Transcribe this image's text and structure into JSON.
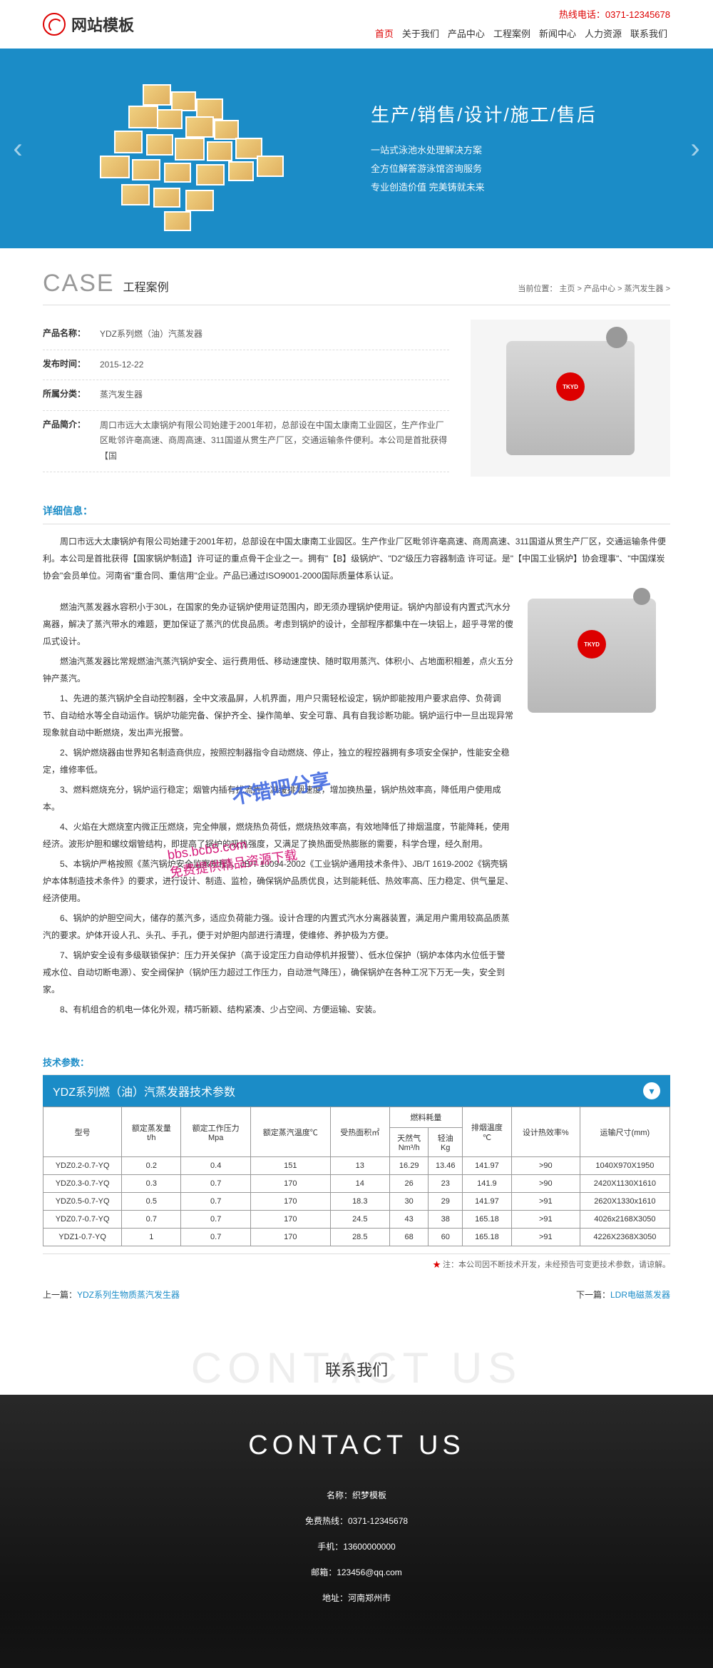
{
  "header": {
    "logo_text": "网站模板",
    "hotline": "热线电话：0371-12345678",
    "nav": [
      "首页",
      "关于我们",
      "产品中心",
      "工程案例",
      "新闻中心",
      "人力资源",
      "联系我们"
    ],
    "nav_active_index": 0
  },
  "banner": {
    "title": "生产/销售/设计/施工/售后",
    "lines": [
      "一站式泳池水处理解决方案",
      "全方位解答游泳馆咨询服务",
      "专业创造价值 完美铸就未来"
    ],
    "bg_color": "#1b8cc7"
  },
  "section": {
    "title_en": "CASE",
    "title_cn": "工程案例",
    "breadcrumb_label": "当前位置：",
    "breadcrumb": [
      "主页",
      "产品中心",
      "蒸汽发生器"
    ]
  },
  "product": {
    "name_label": "产品名称：",
    "name": "YDZ系列燃（油）汽蒸发器",
    "date_label": "发布时间：",
    "date": "2015-12-22",
    "category_label": "所属分类：",
    "category": "蒸汽发生器",
    "intro_label": "产品简介：",
    "intro": "周口市远大太康锅炉有限公司始建于2001年初，总部设在中国太康南工业园区，生产作业厂区毗邻许亳高速、商周高速、311国道从贯生产厂区，交通运输条件便利。本公司是首批获得【国",
    "boiler_logo": "TKYD"
  },
  "detail": {
    "title": "详细信息：",
    "intro_para": "周口市远大太康锅炉有限公司始建于2001年初，总部设在中国太康南工业园区。生产作业厂区毗邻许亳高速、商周高速、311国道从贯生产厂区，交通运输条件便利。本公司是首批获得【国家锅炉制造】许可证的重点骨干企业之一。拥有\"【B】级锅炉\"、\"D2\"级压力容器制造 许可证。是\"【中国工业锅炉】协会理事\"、\"中国煤炭协会\"会员单位。河南省\"重合同、重信用\"企业。产品已通过ISO9001-2000国际质量体系认证。",
    "paragraphs": [
      "燃油汽蒸发器水容积小于30L，在国家的免办证锅炉使用证范围内，即无须办理锅炉使用证。锅炉内部设有内置式汽水分离器，解决了蒸汽带水的难题，更加保证了蒸汽的优良品质。考虑到锅炉的设计，全部程序都集中在一块铝上，超乎寻常的傻瓜式设计。",
      "燃油汽蒸发器比常规燃油汽蒸汽锅炉安全、运行费用低、移动速度快、随时取用蒸汽、体积小、占地面积相差，点火五分钟产蒸汽。",
      "1、先进的蒸汽锅炉全自动控制器，全中文液晶屏，人机界面，用户只需轻松设定，锅炉即能按用户要求启停、负荷调节、自动给水等全自动运作。锅炉功能完备、保护齐全、操作简单、安全可靠、具有自我诊断功能。锅炉运行中一旦出现异常现象就自动中断燃烧，发出声光报警。",
      "2、锅炉燃烧器由世界知名制造商供应，按照控制器指令自动燃烧、停止，独立的程控器拥有多项安全保护，性能安全稳定，维修率低。",
      "3、燃料燃烧充分，锅炉运行稳定；烟管内插有扰流片，减缓排烟速度，增加换热量，锅炉热效率高，降低用户使用成本。",
      "4、火焰在大燃烧室内微正压燃烧，完全伸展，燃烧热负荷低，燃烧热效率高，有效地降低了排烟温度，节能降耗，使用经济。波形炉胆和螺纹烟管结构，即提高了锅炉的吸热强度，又满足了换热面受热膨胀的需要，科学合理，经久耐用。",
      "5、本锅炉严格按照《蒸汽锅炉安全监察规程》、JB/T 10094-2002《工业锅炉通用技术条件》、JB/T 1619-2002《锅壳锅炉本体制造技术条件》的要求，进行设计、制造、监检，确保锅炉品质优良，达到能耗低、热效率高、压力稳定、供气量足、经济使用。",
      "6、锅炉的炉胆空间大，储存的蒸汽多，适应负荷能力强。设计合理的内置式汽水分离器装置，满足用户需用较高品质蒸汽的要求。炉体开设人孔、头孔、手孔，便于对炉胆内部进行清理，使维修、养护极为方便。",
      "7、锅炉安全设有多级联锁保护：压力开关保护（高于设定压力自动停机并报警）、低水位保护（锅炉本体内水位低于警戒水位、自动切断电源）、安全阀保护（锅炉压力超过工作压力，自动泄气降压），确保锅炉在各种工况下万无一失，安全到家。",
      "8、有机组合的机电一体化外观，精巧新颖、结构紧凑、少占空间、方便运输、安装。"
    ],
    "watermark1": "不错吧分享",
    "watermark2": "bbs.bcb5.com",
    "watermark3": "免费提供精品资源下载"
  },
  "params": {
    "section_title": "技术参数：",
    "header_title": "YDZ系列燃（油）汽蒸发器技术参数",
    "columns": [
      "型号",
      "额定蒸发量\nt/h",
      "额定工作压力\nMpa",
      "额定蒸汽温度℃",
      "受热面积㎡",
      "天然气\nNm³/h",
      "轻油\nKg",
      "排烟温度\n℃",
      "设计热效率%",
      "运输尺寸(mm)"
    ],
    "fuel_group_label": "燃料耗量",
    "rows": [
      [
        "YDZ0.2-0.7-YQ",
        "0.2",
        "0.4",
        "151",
        "13",
        "16.29",
        "13.46",
        "141.97",
        ">90",
        "1040X970X1950"
      ],
      [
        "YDZ0.3-0.7-YQ",
        "0.3",
        "0.7",
        "170",
        "14",
        "26",
        "23",
        "141.9",
        ">90",
        "2420X1130X1610"
      ],
      [
        "YDZ0.5-0.7-YQ",
        "0.5",
        "0.7",
        "170",
        "18.3",
        "30",
        "29",
        "141.97",
        ">91",
        "2620X1330x1610"
      ],
      [
        "YDZ0.7-0.7-YQ",
        "0.7",
        "0.7",
        "170",
        "24.5",
        "43",
        "38",
        "165.18",
        ">91",
        "4026x2168X3050"
      ],
      [
        "YDZ1-0.7-YQ",
        "1",
        "0.7",
        "170",
        "28.5",
        "68",
        "60",
        "165.18",
        ">91",
        "4226X2368X3050"
      ]
    ],
    "note_star": "★",
    "note": "注：本公司因不断技术开发，未经预告可变更技术参数，请谅解。"
  },
  "page_nav": {
    "prev_label": "上一篇：",
    "prev_link": "YDZ系列生物质蒸汽发生器",
    "next_label": "下一篇：",
    "next_link": "LDR电磁蒸发器"
  },
  "contact": {
    "bg_text": "CONTACT US",
    "title": "联系我们",
    "footer_title": "CONTACT US",
    "info": [
      "名称：织梦模板",
      "免费热线：0371-12345678",
      "手机：13600000000",
      "邮箱：123456@qq.com",
      "地址：河南郑州市"
    ]
  },
  "colors": {
    "primary": "#1b8cc7",
    "accent": "#d00",
    "text": "#333",
    "muted": "#999"
  }
}
